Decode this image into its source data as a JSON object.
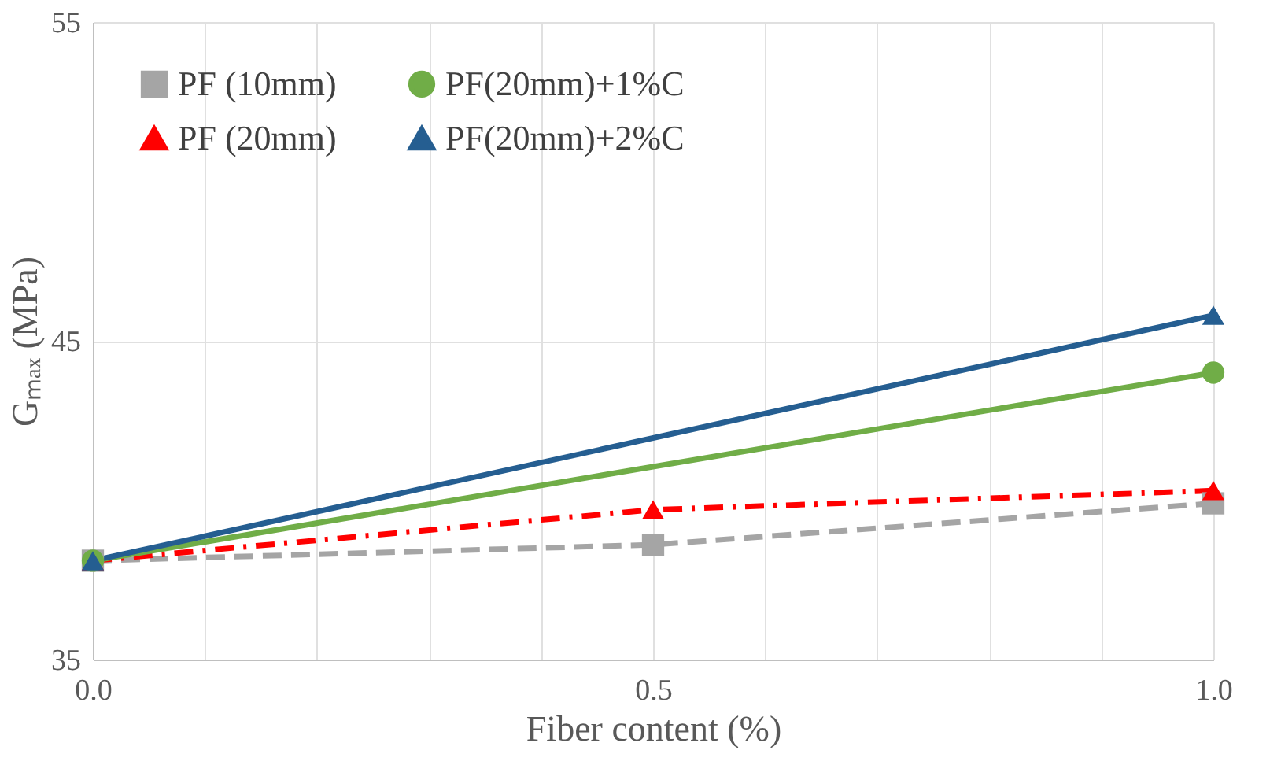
{
  "chart_data": {
    "type": "line",
    "xlabel": "Fiber content (%)",
    "ylabel": "Gₘₐₓ (MPa)",
    "xlim": [
      0,
      1
    ],
    "ylim": [
      35,
      55
    ],
    "xticks": [
      {
        "value": 0,
        "label": "0.0"
      },
      {
        "value": 0.1,
        "label": null
      },
      {
        "value": 0.2,
        "label": null
      },
      {
        "value": 0.3,
        "label": null
      },
      {
        "value": 0.4,
        "label": null
      },
      {
        "value": 0.5,
        "label": "0.5"
      },
      {
        "value": 0.6,
        "label": null
      },
      {
        "value": 0.7,
        "label": null
      },
      {
        "value": 0.8,
        "label": null
      },
      {
        "value": 0.9,
        "label": null
      },
      {
        "value": 1,
        "label": "1.0"
      }
    ],
    "yticks": [
      35,
      45,
      55
    ],
    "grid": true,
    "legend": "top left",
    "series": [
      {
        "name": "PF (10mm)",
        "color": "#a5a5a5",
        "marker": "square",
        "line_style": "dashed",
        "x": [
          0,
          0.5,
          1
        ],
        "values": [
          38.1,
          38.6,
          39.9
        ]
      },
      {
        "name": "PF (20mm)",
        "color": "#ff0000",
        "marker": "triangle",
        "line_style": "dashdot",
        "x": [
          0,
          0.5,
          1
        ],
        "values": [
          38.1,
          39.7,
          40.3
        ]
      },
      {
        "name": "PF(20mm)+1%C",
        "color": "#70ad47",
        "marker": "circle",
        "line_style": "solid",
        "x": [
          0,
          1
        ],
        "values": [
          38.1,
          44.0
        ]
      },
      {
        "name": "PF(20mm)+2%C",
        "color": "#255e91",
        "marker": "triangle",
        "line_style": "solid",
        "x": [
          0,
          1
        ],
        "values": [
          38.1,
          45.8
        ]
      }
    ]
  }
}
